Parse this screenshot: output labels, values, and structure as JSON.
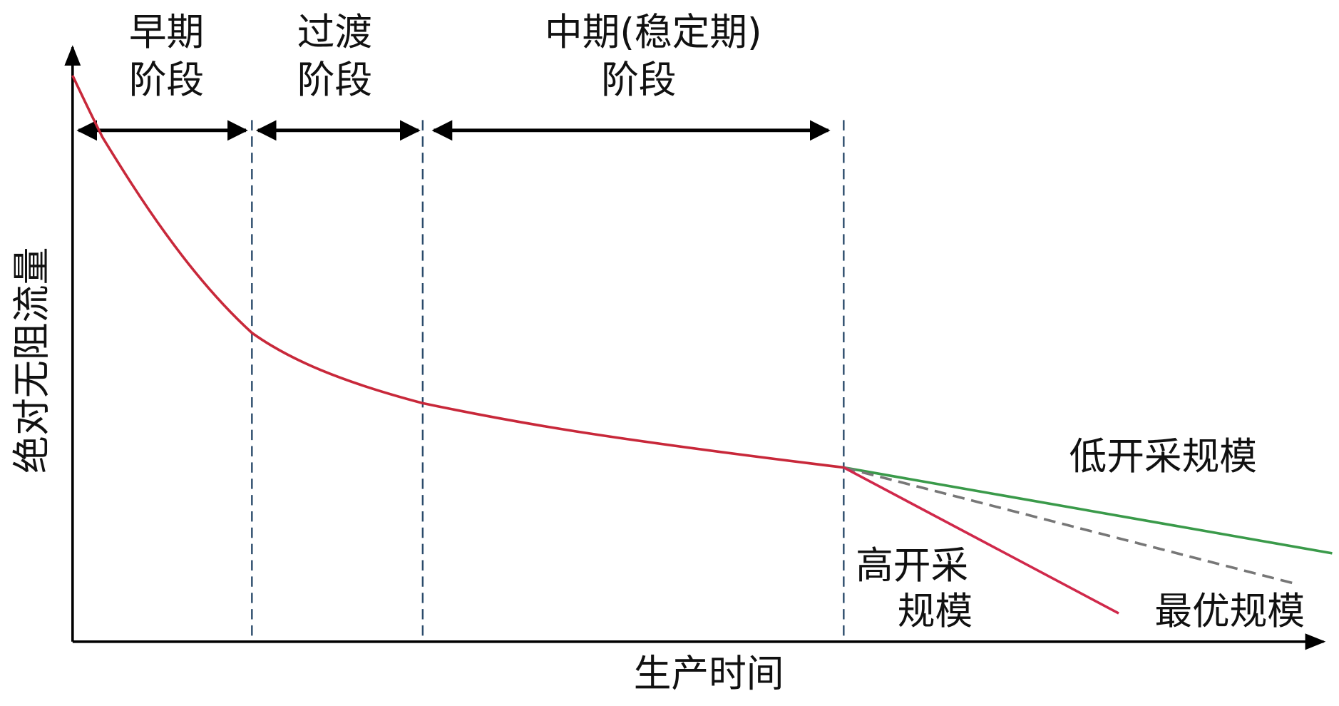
{
  "axes": {
    "y_label": "绝对无阻流量",
    "x_label": "生产时间"
  },
  "stages": [
    {
      "lines": [
        "早期",
        "阶段"
      ]
    },
    {
      "lines": [
        "过渡",
        "阶段"
      ]
    },
    {
      "lines": [
        "中期(稳定期)",
        "阶段"
      ]
    }
  ],
  "curves": {
    "low": {
      "lines": [
        "低开采规模"
      ]
    },
    "high": {
      "lines": [
        "高开采",
        "规模"
      ]
    },
    "optimal": {
      "lines": [
        "最优规模"
      ]
    }
  }
}
